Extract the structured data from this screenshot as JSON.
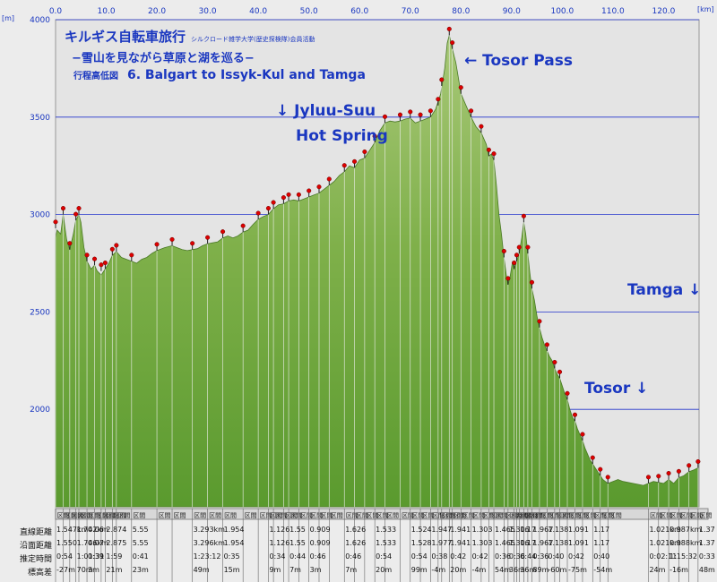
{
  "header": {
    "title": "キルギス自転車旅行",
    "title_small": "シルクロード雑学大学(歴史探検隊)会員活動",
    "subtitle": "−雪山を見ながら草原と湖を巡る−",
    "route_label": "行程高低図",
    "route_name": "6. Balgart to Issyk-Kul and Tamga"
  },
  "annotations": {
    "tosor_pass": "← Tosor Pass",
    "jyluu_suu_1": "↓  Jyluu-Suu",
    "jyluu_suu_2": "Hot Spring",
    "tamga": "Tamga ↓",
    "tosor": "Tosor ↓"
  },
  "units": {
    "y": "[m]",
    "x": "[km]"
  },
  "table": {
    "row_labels": [
      "直線距離",
      "沿面距離",
      "推定時間",
      "標高差"
    ],
    "sample_cells": [
      [
        "1.547km",
        "1.742km",
        "0.06",
        "2.874",
        "5.55",
        "3.293km",
        "1.954",
        "1.126",
        "1.55",
        "0.909",
        "1.626",
        "1.533",
        "1.524",
        "1.947",
        "1.941",
        "1.303",
        "1.465",
        "1.306",
        "1.17",
        "1.967",
        "1.138",
        "1.091",
        "1.17",
        "1.021km",
        "0.987km",
        "1.37"
      ],
      [
        "1.550",
        "1.746km",
        "0.07",
        "2.875",
        "5.55",
        "3.296km",
        "1.954",
        "1.126",
        "1.55",
        "0.909",
        "1.626",
        "1.533",
        "1.528",
        "1.977",
        "1.941",
        "1.303",
        "1.465",
        "1.306",
        "1.17",
        "1.967",
        "1.138",
        "1.091",
        "1.17",
        "1.021km",
        "0.988km",
        "1.37"
      ],
      [
        "0:54",
        "1:01:31",
        "0:39",
        "1:59",
        "0:41",
        "1:23:12",
        "0:35",
        "0:34",
        "0:44",
        "0:46",
        "0:46",
        "0:54",
        "0:54",
        "0:38",
        "0:42",
        "0:42",
        "0:36",
        "0:36",
        "0:44",
        "0:36",
        "0:40",
        "0:42",
        "0:40",
        "0:02:11",
        "1:15:32",
        "0:33"
      ],
      [
        "-27m",
        "70m",
        "3m",
        "21m",
        "23m",
        "49m",
        "15m",
        "9m",
        "7m",
        "3m",
        "7m",
        "20m",
        "99m",
        "-4m",
        "20m",
        "-4m",
        "54m",
        "36m",
        "36m",
        "89m",
        "-60m",
        "-75m",
        "-54m",
        "24m",
        "-16m",
        "48m"
      ]
    ]
  },
  "chart_data": {
    "type": "area",
    "title": "6. Balgart to Issyk-Kul and Tamga",
    "xlabel": "[km]",
    "ylabel": "[m]",
    "xlim": [
      0,
      127
    ],
    "ylim": [
      1500,
      4000
    ],
    "x_ticks": [
      0,
      10,
      20,
      30,
      40,
      50,
      60,
      70,
      80,
      90,
      100,
      110,
      120
    ],
    "y_ticks": [
      2000,
      2500,
      3000,
      3500,
      4000
    ],
    "grid": true,
    "legend": "none",
    "fill_color": "#5a9a2e",
    "line_color": "#4a7a25",
    "grid_color": "#2233cc",
    "plot_bg": "#e4e4e4",
    "marker_color": "#dd0000",
    "points": [
      [
        0,
        2880
      ],
      [
        0.3,
        2920
      ],
      [
        1,
        2900
      ],
      [
        1.5,
        3000
      ],
      [
        2.2,
        2870
      ],
      [
        2.8,
        2820
      ],
      [
        3.5,
        2900
      ],
      [
        4,
        2970
      ],
      [
        4.6,
        3000
      ],
      [
        5,
        2960
      ],
      [
        5.6,
        2830
      ],
      [
        6.2,
        2760
      ],
      [
        7,
        2720
      ],
      [
        7.7,
        2740
      ],
      [
        8.2,
        2710
      ],
      [
        9,
        2690
      ],
      [
        9.8,
        2720
      ],
      [
        10.5,
        2750
      ],
      [
        11.2,
        2790
      ],
      [
        12,
        2810
      ],
      [
        13,
        2780
      ],
      [
        14,
        2770
      ],
      [
        15,
        2760
      ],
      [
        16,
        2750
      ],
      [
        17,
        2770
      ],
      [
        18,
        2780
      ],
      [
        19,
        2800
      ],
      [
        20,
        2815
      ],
      [
        21.5,
        2830
      ],
      [
        23,
        2840
      ],
      [
        24,
        2830
      ],
      [
        25,
        2820
      ],
      [
        26,
        2815
      ],
      [
        27,
        2820
      ],
      [
        28,
        2825
      ],
      [
        29,
        2840
      ],
      [
        30,
        2850
      ],
      [
        31,
        2855
      ],
      [
        32,
        2860
      ],
      [
        33,
        2880
      ],
      [
        34,
        2890
      ],
      [
        35,
        2880
      ],
      [
        36,
        2890
      ],
      [
        37,
        2910
      ],
      [
        38,
        2920
      ],
      [
        39,
        2950
      ],
      [
        40,
        2975
      ],
      [
        41,
        2990
      ],
      [
        42,
        3000
      ],
      [
        43,
        3030
      ],
      [
        44,
        3050
      ],
      [
        45,
        3055
      ],
      [
        46,
        3070
      ],
      [
        47,
        3075
      ],
      [
        48,
        3070
      ],
      [
        49,
        3080
      ],
      [
        50,
        3090
      ],
      [
        51,
        3100
      ],
      [
        52,
        3110
      ],
      [
        53,
        3130
      ],
      [
        54,
        3150
      ],
      [
        55,
        3170
      ],
      [
        56,
        3200
      ],
      [
        57,
        3220
      ],
      [
        58,
        3250
      ],
      [
        59,
        3240
      ],
      [
        60,
        3280
      ],
      [
        61,
        3290
      ],
      [
        62,
        3330
      ],
      [
        63,
        3370
      ],
      [
        64,
        3430
      ],
      [
        65,
        3470
      ],
      [
        66,
        3480
      ],
      [
        67,
        3475
      ],
      [
        68,
        3480
      ],
      [
        69,
        3490
      ],
      [
        70,
        3495
      ],
      [
        71,
        3470
      ],
      [
        72,
        3480
      ],
      [
        73,
        3490
      ],
      [
        74,
        3500
      ],
      [
        75,
        3540
      ],
      [
        76,
        3620
      ],
      [
        76.8,
        3750
      ],
      [
        77.3,
        3880
      ],
      [
        77.7,
        3920
      ],
      [
        78.3,
        3850
      ],
      [
        79,
        3780
      ],
      [
        79.5,
        3700
      ],
      [
        80,
        3620
      ],
      [
        81,
        3560
      ],
      [
        82,
        3500
      ],
      [
        83,
        3450
      ],
      [
        84,
        3420
      ],
      [
        85,
        3360
      ],
      [
        85.5,
        3300
      ],
      [
        86,
        3310
      ],
      [
        86.5,
        3280
      ],
      [
        87,
        3150
      ],
      [
        87.5,
        3000
      ],
      [
        88,
        2900
      ],
      [
        88.5,
        2780
      ],
      [
        89,
        2680
      ],
      [
        89.3,
        2640
      ],
      [
        89.7,
        2680
      ],
      [
        90.2,
        2760
      ],
      [
        90.5,
        2720
      ],
      [
        91,
        2760
      ],
      [
        91.5,
        2800
      ],
      [
        92,
        2880
      ],
      [
        92.4,
        2960
      ],
      [
        92.8,
        2900
      ],
      [
        93.2,
        2800
      ],
      [
        93.6,
        2700
      ],
      [
        94,
        2620
      ],
      [
        94.5,
        2560
      ],
      [
        95,
        2480
      ],
      [
        95.5,
        2420
      ],
      [
        96,
        2370
      ],
      [
        96.5,
        2330
      ],
      [
        97,
        2300
      ],
      [
        97.5,
        2270
      ],
      [
        98,
        2250
      ],
      [
        98.5,
        2210
      ],
      [
        99,
        2180
      ],
      [
        99.5,
        2160
      ],
      [
        100,
        2120
      ],
      [
        100.5,
        2080
      ],
      [
        101,
        2050
      ],
      [
        101.5,
        2000
      ],
      [
        102,
        1960
      ],
      [
        102.5,
        1940
      ],
      [
        103,
        1900
      ],
      [
        103.5,
        1870
      ],
      [
        104,
        1840
      ],
      [
        104.5,
        1800
      ],
      [
        105,
        1770
      ],
      [
        105.5,
        1740
      ],
      [
        106,
        1720
      ],
      [
        106.5,
        1700
      ],
      [
        107,
        1680
      ],
      [
        107.5,
        1660
      ],
      [
        108,
        1640
      ],
      [
        108.5,
        1630
      ],
      [
        109,
        1620
      ],
      [
        110,
        1630
      ],
      [
        111,
        1640
      ],
      [
        112,
        1630
      ],
      [
        113,
        1625
      ],
      [
        114,
        1620
      ],
      [
        115,
        1615
      ],
      [
        116,
        1610
      ],
      [
        117,
        1620
      ],
      [
        118,
        1630
      ],
      [
        119,
        1625
      ],
      [
        120,
        1620
      ],
      [
        121,
        1640
      ],
      [
        122,
        1620
      ],
      [
        123,
        1650
      ],
      [
        124,
        1660
      ],
      [
        125,
        1680
      ],
      [
        126,
        1690
      ],
      [
        126.8,
        1700
      ]
    ],
    "markers": [
      [
        0,
        2930
      ],
      [
        1.5,
        3000
      ],
      [
        2.8,
        2820
      ],
      [
        4,
        2970
      ],
      [
        4.6,
        3000
      ],
      [
        6.2,
        2760
      ],
      [
        7.7,
        2740
      ],
      [
        9,
        2710
      ],
      [
        9.8,
        2720
      ],
      [
        11.2,
        2790
      ],
      [
        12,
        2810
      ],
      [
        15,
        2760
      ],
      [
        20,
        2815
      ],
      [
        23,
        2840
      ],
      [
        27,
        2820
      ],
      [
        30,
        2850
      ],
      [
        33,
        2880
      ],
      [
        37,
        2910
      ],
      [
        40,
        2975
      ],
      [
        42,
        3000
      ],
      [
        43,
        3030
      ],
      [
        45,
        3055
      ],
      [
        46,
        3070
      ],
      [
        48,
        3070
      ],
      [
        50,
        3090
      ],
      [
        52,
        3110
      ],
      [
        54,
        3150
      ],
      [
        57,
        3220
      ],
      [
        59,
        3240
      ],
      [
        61,
        3290
      ],
      [
        63,
        3370
      ],
      [
        65,
        3470
      ],
      [
        68,
        3480
      ],
      [
        70,
        3495
      ],
      [
        72,
        3480
      ],
      [
        74,
        3500
      ],
      [
        75.5,
        3560
      ],
      [
        76.2,
        3660
      ],
      [
        77.7,
        3920
      ],
      [
        78.3,
        3850
      ],
      [
        80,
        3620
      ],
      [
        82,
        3500
      ],
      [
        84,
        3420
      ],
      [
        85.5,
        3300
      ],
      [
        86.5,
        3280
      ],
      [
        88.5,
        2780
      ],
      [
        89.3,
        2640
      ],
      [
        90.5,
        2720
      ],
      [
        91,
        2760
      ],
      [
        91.5,
        2800
      ],
      [
        92.4,
        2960
      ],
      [
        93.2,
        2800
      ],
      [
        94,
        2620
      ],
      [
        95.5,
        2420
      ],
      [
        97,
        2300
      ],
      [
        98.5,
        2210
      ],
      [
        99.5,
        2160
      ],
      [
        101,
        2050
      ],
      [
        102.5,
        1940
      ],
      [
        104,
        1840
      ],
      [
        106,
        1720
      ],
      [
        107.5,
        1660
      ],
      [
        109,
        1620
      ],
      [
        117,
        1620
      ],
      [
        119,
        1625
      ],
      [
        121,
        1640
      ],
      [
        123,
        1650
      ],
      [
        125,
        1680
      ],
      [
        126.8,
        1700
      ]
    ]
  }
}
